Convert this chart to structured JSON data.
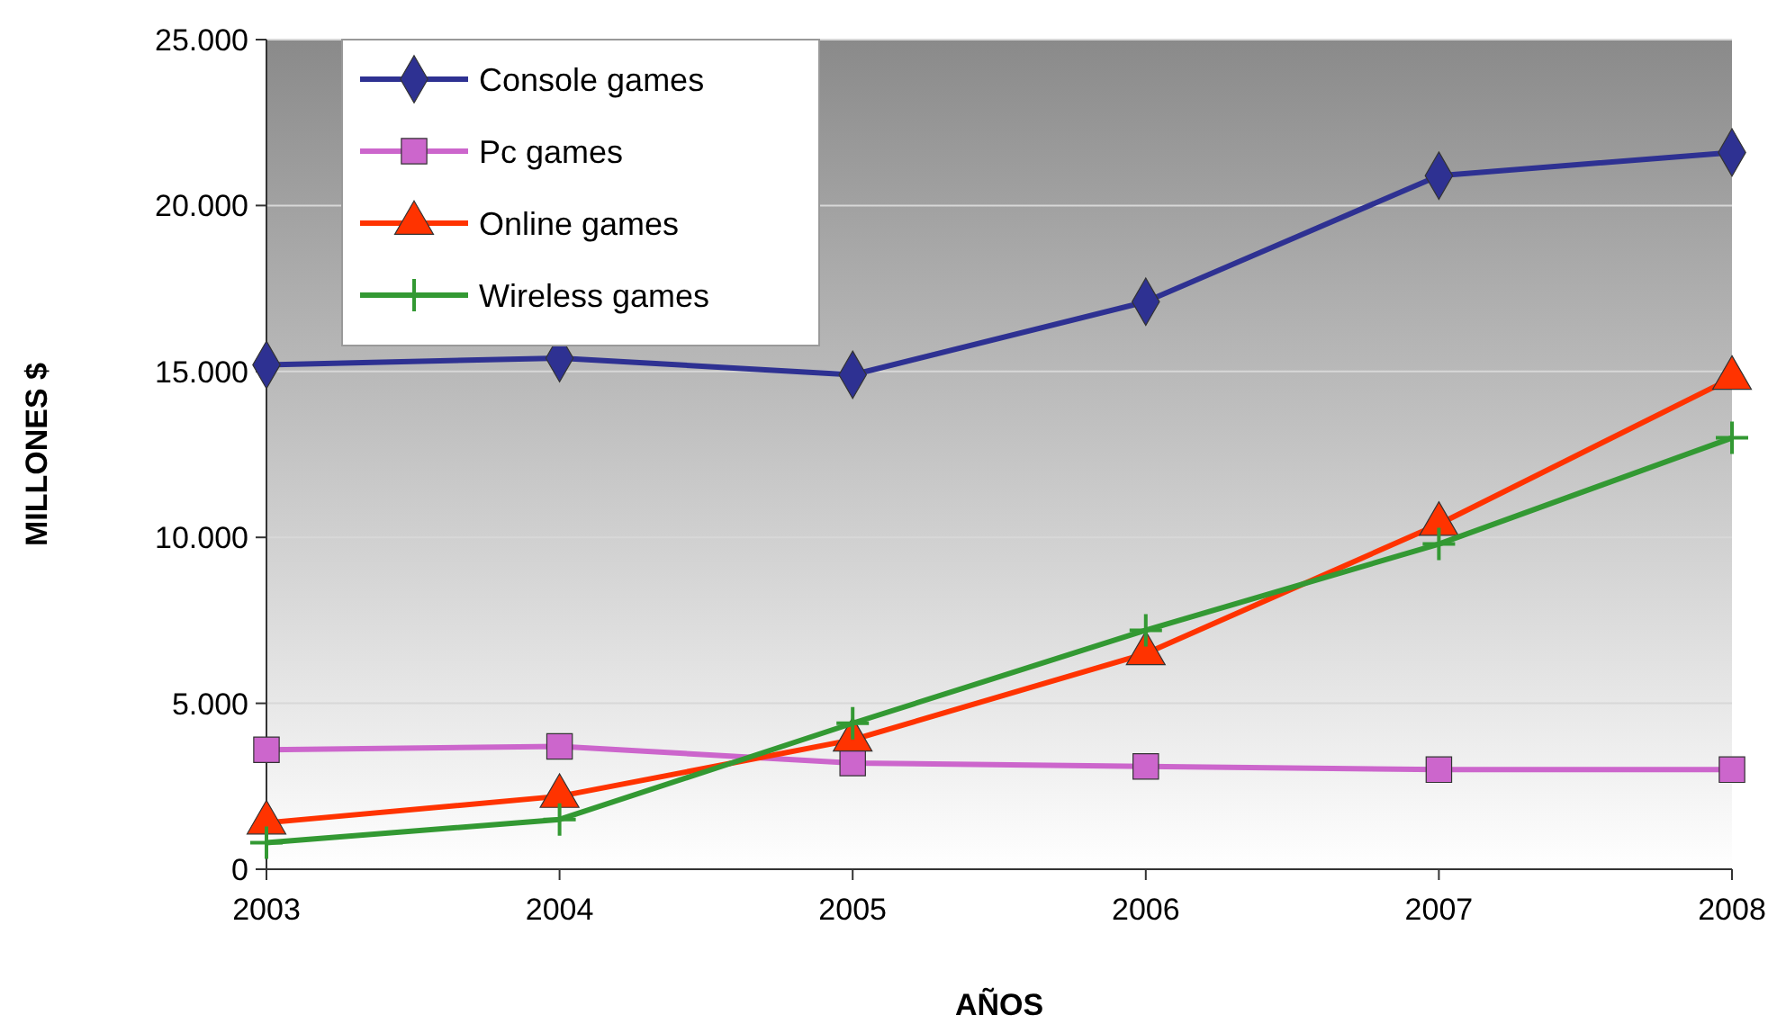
{
  "chart_data": {
    "type": "line",
    "xlabel": "AÑOS",
    "ylabel": "MILLONES $",
    "categories": [
      "2003",
      "2004",
      "2005",
      "2006",
      "2007",
      "2008"
    ],
    "series": [
      {
        "name": "Console games",
        "color": "#2e3192",
        "marker": "diamond",
        "values": [
          15200,
          15400,
          14900,
          17100,
          20900,
          21600
        ]
      },
      {
        "name": "Pc games",
        "color": "#cc66cc",
        "marker": "square",
        "values": [
          3600,
          3700,
          3200,
          3100,
          3000,
          3000
        ]
      },
      {
        "name": "Online games",
        "color": "#ff3300",
        "marker": "triangle",
        "values": [
          1400,
          2200,
          3900,
          6500,
          10400,
          14800
        ]
      },
      {
        "name": "Wireless games",
        "color": "#339933",
        "marker": "cross",
        "values": [
          800,
          1500,
          4400,
          7200,
          9800,
          13000
        ]
      }
    ],
    "ylim": [
      0,
      25000
    ],
    "yticks": [
      {
        "value": 0,
        "label": "0"
      },
      {
        "value": 5000,
        "label": "5.000"
      },
      {
        "value": 10000,
        "label": "10.000"
      },
      {
        "value": 15000,
        "label": "15.000"
      },
      {
        "value": 20000,
        "label": "20.000"
      },
      {
        "value": 25000,
        "label": "25.000"
      }
    ],
    "grid": "y",
    "legend": "top left",
    "line_style": "solid"
  }
}
